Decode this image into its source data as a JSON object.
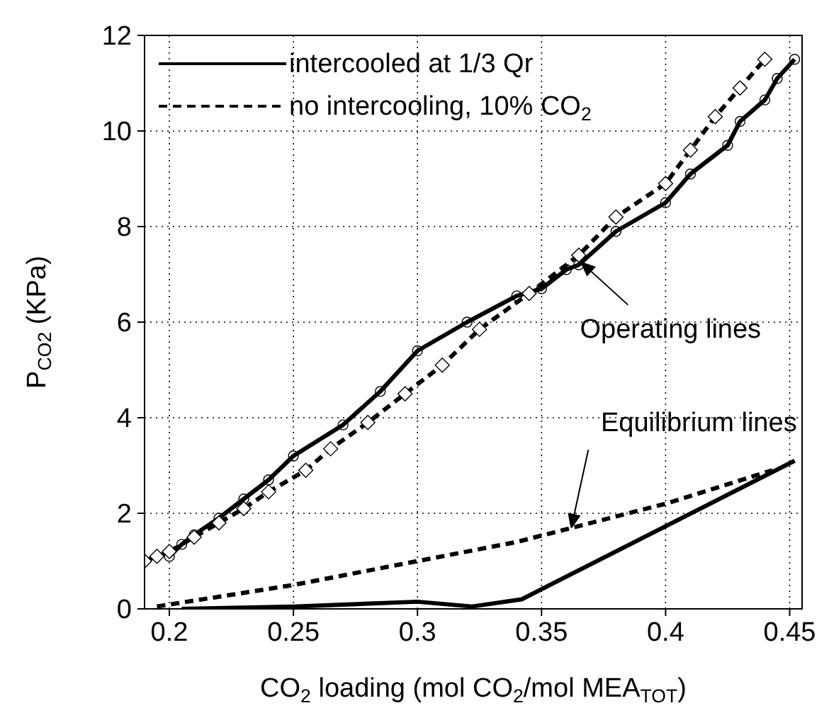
{
  "chart_data": {
    "type": "line",
    "xlabel": "CO$_{2}$ loading (mol CO$_{2}$/mol MEA$_{TOT}$)",
    "ylabel": "P$_{CO2}$ (KPa)",
    "xlim": [
      0.19,
      0.455
    ],
    "xticks": [
      0.2,
      0.25,
      0.3,
      0.35,
      0.4,
      0.45
    ],
    "ylim": [
      0,
      12
    ],
    "yticks": [
      0,
      2,
      4,
      6,
      8,
      10,
      12
    ],
    "grid": true,
    "legend": "top left",
    "series": [
      {
        "name": "intercooled at 1/3 Qr",
        "color": "#000000",
        "line_style": "solid",
        "marker": "circle",
        "x": [
          0.2,
          0.205,
          0.21,
          0.22,
          0.23,
          0.24,
          0.25,
          0.27,
          0.285,
          0.3,
          0.32,
          0.34,
          0.35,
          0.36,
          0.365,
          0.38,
          0.4,
          0.41,
          0.425,
          0.43,
          0.44,
          0.445,
          0.452
        ],
        "values": [
          1.1,
          1.35,
          1.55,
          1.9,
          2.3,
          2.7,
          3.2,
          3.85,
          4.55,
          5.4,
          6.0,
          6.55,
          6.7,
          7.1,
          7.2,
          7.9,
          8.5,
          9.1,
          9.7,
          10.2,
          10.65,
          11.1,
          11.5
        ]
      },
      {
        "name": "no intercooling, 10% CO$_{2}$",
        "color": "#000000",
        "line_style": "dashed",
        "marker": "diamond",
        "x": [
          0.19,
          0.195,
          0.2,
          0.21,
          0.22,
          0.23,
          0.24,
          0.255,
          0.265,
          0.28,
          0.295,
          0.31,
          0.325,
          0.345,
          0.365,
          0.38,
          0.4,
          0.41,
          0.42,
          0.43,
          0.44
        ],
        "values": [
          1.0,
          1.1,
          1.2,
          1.5,
          1.8,
          2.1,
          2.45,
          2.9,
          3.35,
          3.9,
          4.5,
          5.1,
          5.85,
          6.6,
          7.4,
          8.2,
          8.9,
          9.6,
          10.3,
          10.9,
          11.5
        ]
      },
      {
        "color": "#000000",
        "line_style": "solid",
        "marker": "none",
        "x": [
          0.205,
          0.25,
          0.3,
          0.322,
          0.342,
          0.452
        ],
        "values": [
          0,
          0.05,
          0.15,
          0.05,
          0.2,
          3.1
        ]
      },
      {
        "color": "#000000",
        "line_style": "dashed",
        "marker": "none",
        "x": [
          0.195,
          0.25,
          0.3,
          0.34,
          0.4,
          0.443
        ],
        "values": [
          0.05,
          0.5,
          1.0,
          1.4,
          2.2,
          2.9
        ]
      }
    ],
    "annotations": [
      {
        "text": "Operating lines",
        "x": 0.366,
        "y": 7.25
      },
      {
        "text": "Equilibrium lines",
        "x": 0.362,
        "y": 1.7
      }
    ]
  }
}
